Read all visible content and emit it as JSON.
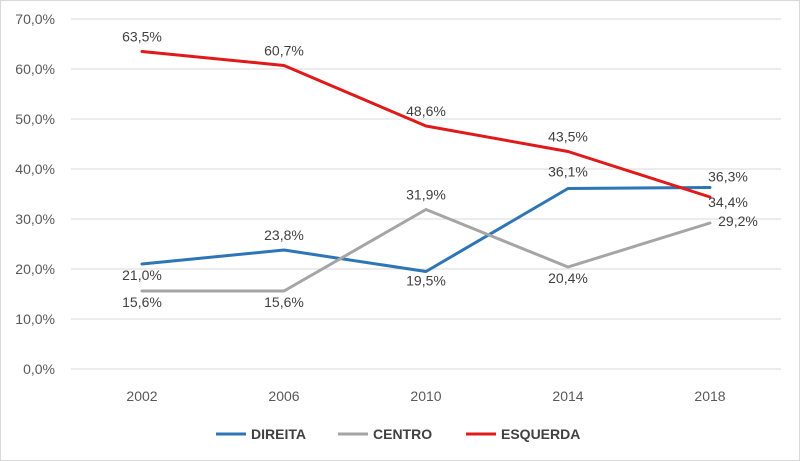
{
  "chart_data": {
    "type": "line",
    "categories": [
      "2002",
      "2006",
      "2010",
      "2014",
      "2018"
    ],
    "y_ticks": [
      "0,0%",
      "10,0%",
      "20,0%",
      "30,0%",
      "40,0%",
      "50,0%",
      "60,0%",
      "70,0%"
    ],
    "ylim": [
      0,
      70
    ],
    "grid": true,
    "legend_position": "bottom",
    "series": [
      {
        "name": "DIREITA",
        "color": "#2e75b6",
        "values": [
          21.0,
          23.8,
          19.5,
          36.1,
          36.3
        ],
        "labels": [
          "21,0%",
          "23,8%",
          "19,5%",
          "36,1%",
          "36,3%"
        ]
      },
      {
        "name": "CENTRO",
        "color": "#a5a5a5",
        "values": [
          15.6,
          15.6,
          31.9,
          20.4,
          29.2
        ],
        "labels": [
          "15,6%",
          "15,6%",
          "31,9%",
          "20,4%",
          "29,2%"
        ]
      },
      {
        "name": "ESQUERDA",
        "color": "#e0191a",
        "values": [
          63.5,
          60.7,
          48.6,
          43.5,
          34.4
        ],
        "labels": [
          "63,5%",
          "60,7%",
          "48,6%",
          "43,5%",
          "34,4%"
        ]
      }
    ]
  }
}
